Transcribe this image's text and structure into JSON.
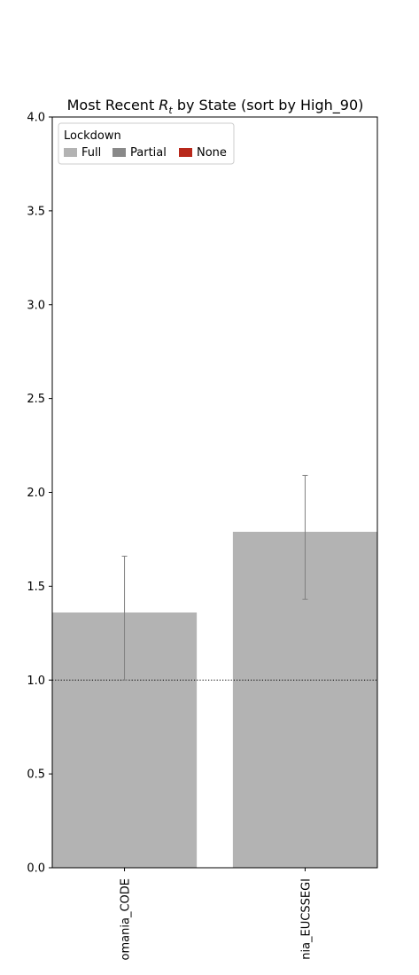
{
  "chart_data": {
    "type": "bar",
    "title_prefix": "Most Recent ",
    "title_symbol": "R",
    "title_subscript": "t",
    "title_suffix": " by State (sort by High_90)",
    "categories": [
      "omania_CODE",
      "nia_EUCSSEGI"
    ],
    "values": [
      1.36,
      1.79
    ],
    "error_low": [
      1.0,
      1.43
    ],
    "error_high": [
      1.66,
      2.09
    ],
    "bar_colors": [
      "#b3b3b3",
      "#b3b3b3"
    ],
    "reference_line": 1.0,
    "ylim": [
      0,
      4.0
    ],
    "yticks": [
      0.0,
      0.5,
      1.0,
      1.5,
      2.0,
      2.5,
      3.0,
      3.5,
      4.0
    ],
    "ytick_labels": [
      "0.0",
      "0.5",
      "1.0",
      "1.5",
      "2.0",
      "2.5",
      "3.0",
      "3.5",
      "4.0"
    ],
    "grid": false,
    "legend": {
      "title": "Lockdown",
      "placement": "top-left",
      "entries": [
        {
          "label": "Full",
          "color": "#b3b3b3"
        },
        {
          "label": "Partial",
          "color": "#898989"
        },
        {
          "label": "None",
          "color": "#b8281b"
        }
      ]
    }
  }
}
